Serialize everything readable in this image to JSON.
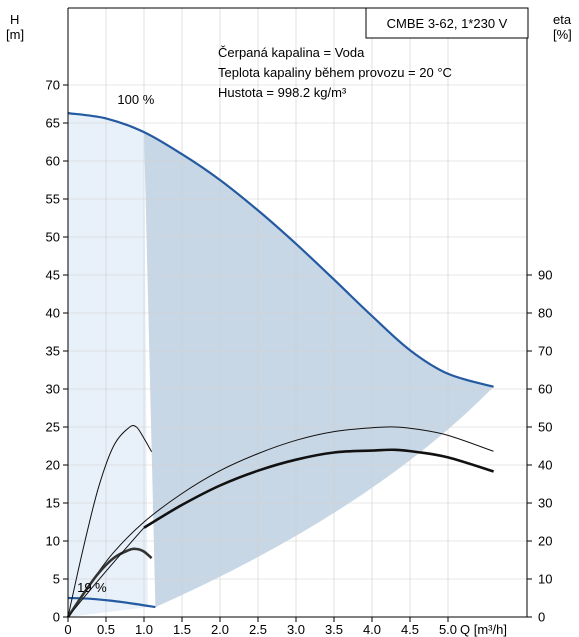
{
  "chart_data": {
    "type": "line",
    "title": "CMBE 3-62, 1*230 V",
    "annotations": [
      "Čerpaná kapalina = Voda",
      "Teplota kapaliny během provozu = 20 °C",
      "Hustota = 998.2 kg/m³"
    ],
    "y_left_label": [
      "H",
      "[m]"
    ],
    "y_right_label": [
      "eta",
      "[%]"
    ],
    "x_label": "Q [m³/h]",
    "x_ticks": [
      "0",
      "0.5",
      "1.0",
      "1.5",
      "2.0",
      "2.5",
      "3.0",
      "3.5",
      "4.0",
      "4.5",
      "5.0"
    ],
    "y_left_ticks": [
      "0",
      "5",
      "10",
      "15",
      "20",
      "25",
      "30",
      "35",
      "40",
      "45",
      "50",
      "55",
      "60",
      "65",
      "70"
    ],
    "y_right_ticks": [
      "0",
      "10",
      "20",
      "30",
      "40",
      "50",
      "60",
      "70",
      "80",
      "90"
    ],
    "xlim": [
      0,
      5.6
    ],
    "ylim_left": [
      0,
      80
    ],
    "ylim_right": [
      0,
      160
    ],
    "speed_labels": [
      {
        "text": "100 %",
        "x": 0.65,
        "y": 67.5
      },
      {
        "text": "19 %",
        "x": 0.12,
        "y": 3.3
      }
    ],
    "colors": {
      "curve": "#245aa1",
      "region": "#c8d7e6",
      "region_light": "#e8f0f9"
    },
    "series": [
      {
        "role": "curve-100",
        "x": [
          0,
          0.5,
          1.0,
          1.5,
          2.0,
          2.5,
          3.0,
          3.5,
          4.0,
          4.5,
          5.0,
          5.6
        ],
        "values": [
          66.3,
          65.6,
          63.8,
          60.9,
          57.5,
          53.5,
          49.1,
          44.4,
          39.6,
          35.1,
          32.0,
          30.3
        ]
      },
      {
        "role": "curve-19",
        "x": [
          0,
          0.3,
          0.6,
          0.9,
          1.15
        ],
        "values": [
          2.5,
          2.4,
          2.1,
          1.7,
          1.3
        ]
      },
      {
        "role": "eta-100",
        "x": [
          1.0,
          1.5,
          2.0,
          2.5,
          3.0,
          3.5,
          4.0,
          4.3,
          4.6,
          5.0,
          5.6
        ],
        "values": [
          23.5,
          29.5,
          34.6,
          38.5,
          41.4,
          43.3,
          43.8,
          44.0,
          43.4,
          42.0,
          38.3
        ]
      },
      {
        "role": "eta-100-thin",
        "x": [
          0,
          0.3,
          0.6,
          1.0,
          1.5,
          2.0,
          2.5,
          3.0,
          3.5,
          4.0,
          4.3,
          4.6,
          5.0,
          5.6
        ],
        "values": [
          0,
          9,
          17,
          25,
          32.5,
          38.5,
          43,
          46.5,
          48.8,
          49.8,
          50,
          49.4,
          47.8,
          43.6
        ]
      },
      {
        "role": "eta-19-thin",
        "x": [
          0,
          0.2,
          0.4,
          0.6,
          0.8,
          0.9,
          1.0,
          1.1
        ],
        "values": [
          0,
          18,
          34,
          45,
          49.8,
          50,
          47,
          43.5
        ]
      },
      {
        "role": "eta-19",
        "x": [
          0,
          0.2,
          0.4,
          0.6,
          0.8,
          0.9,
          1.0,
          1.1
        ],
        "values": [
          0,
          6,
          11.5,
          15.5,
          17.6,
          17.9,
          17.2,
          15.5
        ]
      }
    ]
  }
}
